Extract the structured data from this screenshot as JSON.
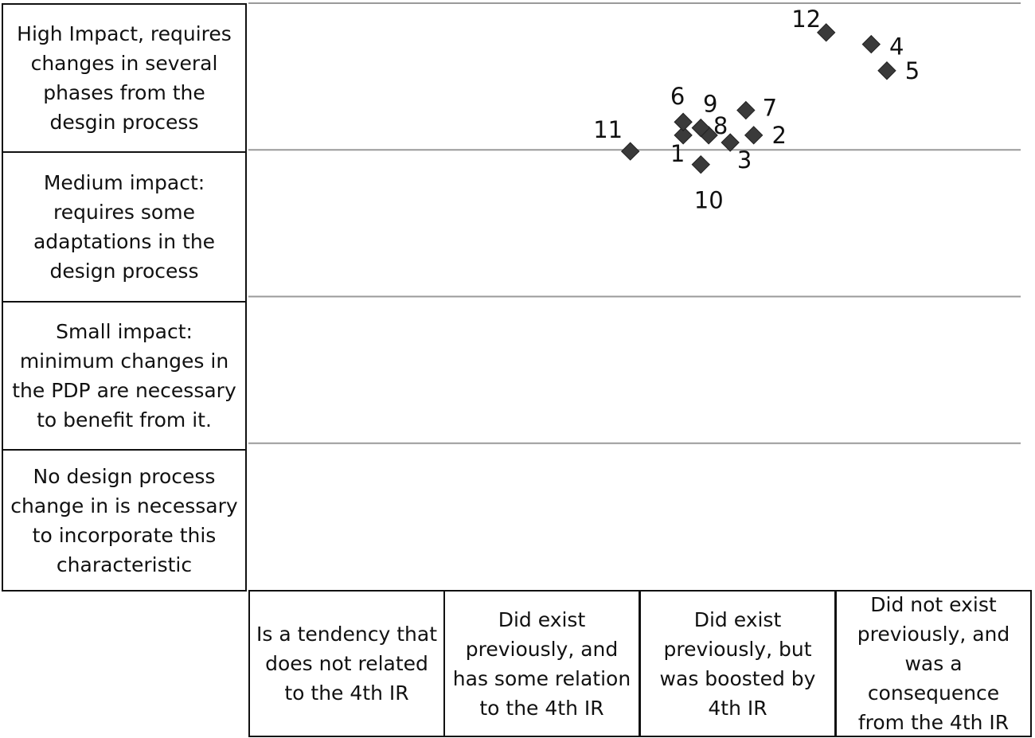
{
  "chart_data": {
    "type": "scatter",
    "title": "",
    "xlabel": "",
    "ylabel": "",
    "x_categories": [
      "Is a tendency that does not related to the 4th IR",
      "Did exist previously, and has some relation to the 4th IR",
      "Did exist previously, but was boosted by 4th IR",
      "Did not exist previously, and was a consequence from the 4th IR"
    ],
    "y_categories": [
      "High Impact, requires changes in several phases from the desgin process",
      "Medium impact: requires some adaptations in the design process",
      "Small impact: minimum changes in the PDP are necessary to benefit from it.",
      "No design process change in is necessary to incorporate this characteristic"
    ],
    "xlim": [
      0,
      4
    ],
    "ylim": [
      0,
      4
    ],
    "grid": true,
    "marker": "diamond",
    "marker_color": "#3a3a3a",
    "points": [
      {
        "label": "1",
        "x": 2.22,
        "y": 3.1
      },
      {
        "label": "2",
        "x": 2.58,
        "y": 3.1
      },
      {
        "label": "3",
        "x": 2.46,
        "y": 3.05
      },
      {
        "label": "4",
        "x": 3.18,
        "y": 3.72
      },
      {
        "label": "5",
        "x": 3.26,
        "y": 3.54
      },
      {
        "label": "6",
        "x": 2.22,
        "y": 3.19
      },
      {
        "label": "7",
        "x": 2.54,
        "y": 3.27
      },
      {
        "label": "8",
        "x": 2.35,
        "y": 3.1
      },
      {
        "label": "9",
        "x": 2.31,
        "y": 3.15
      },
      {
        "label": "10",
        "x": 2.31,
        "y": 2.9
      },
      {
        "label": "11",
        "x": 1.95,
        "y": 2.99
      },
      {
        "label": "12",
        "x": 2.95,
        "y": 3.8
      }
    ]
  }
}
